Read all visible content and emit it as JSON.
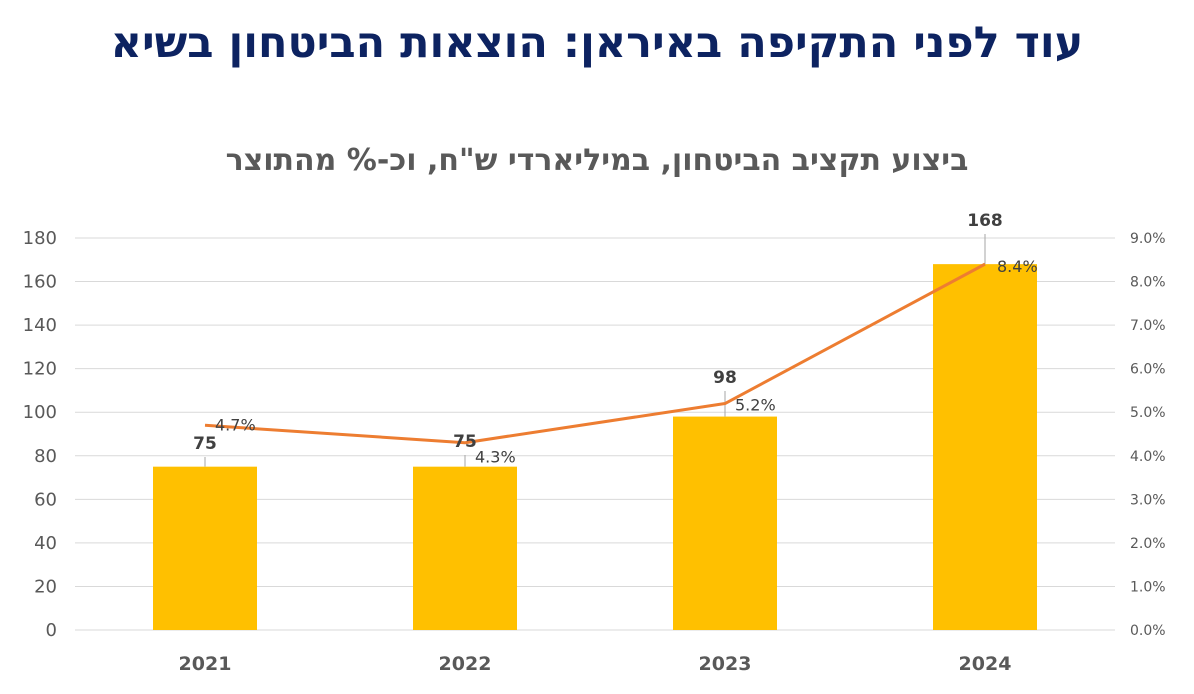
{
  "title": "עוד לפני התקיפה באיראן: הוצאות הביטחון בשיא",
  "chart_data": {
    "type": "bar",
    "title": "ביצוע תקציב הביטחון, במיליארדי ש\"ח, וכ-% מהתוצר",
    "categories": [
      "2021",
      "2022",
      "2023",
      "2024"
    ],
    "series": [
      {
        "name": "Defense budget execution (billion NIS)",
        "type": "bar",
        "axis": "left",
        "color": "#ffc000",
        "values": [
          75,
          75,
          98,
          168
        ],
        "labels": [
          "75",
          "75",
          "98",
          "168"
        ]
      },
      {
        "name": "Share of GDP",
        "type": "line",
        "axis": "right",
        "color": "#ed7d31",
        "values": [
          4.7,
          4.3,
          5.2,
          8.4
        ],
        "labels": [
          "4.7%",
          "4.3%",
          "5.2%",
          "8.4%"
        ]
      }
    ],
    "xlabel": "",
    "ylabel": "",
    "y_left": {
      "range": [
        0,
        180
      ],
      "ticks": [
        "0",
        "20",
        "40",
        "60",
        "80",
        "100",
        "120",
        "140",
        "160",
        "180"
      ]
    },
    "y_right": {
      "range": [
        0,
        9
      ],
      "ticks": [
        "0.0%",
        "1.0%",
        "2.0%",
        "3.0%",
        "4.0%",
        "5.0%",
        "6.0%",
        "7.0%",
        "8.0%",
        "9.0%"
      ]
    },
    "grid": true,
    "legend": "none"
  }
}
